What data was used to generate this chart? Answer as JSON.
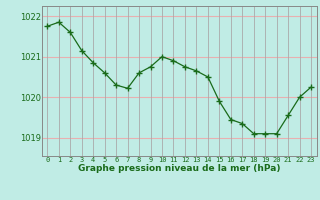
{
  "x": [
    0,
    1,
    2,
    3,
    4,
    5,
    6,
    7,
    8,
    9,
    10,
    11,
    12,
    13,
    14,
    15,
    16,
    17,
    18,
    19,
    20,
    21,
    22,
    23
  ],
  "y": [
    1021.75,
    1021.85,
    1021.6,
    1021.15,
    1020.85,
    1020.6,
    1020.3,
    1020.22,
    1020.6,
    1020.75,
    1021.0,
    1020.9,
    1020.75,
    1020.65,
    1020.5,
    1019.9,
    1019.45,
    1019.35,
    1019.1,
    1019.1,
    1019.1,
    1019.55,
    1020.0,
    1020.25
  ],
  "ylim": [
    1018.55,
    1022.25
  ],
  "yticks": [
    1019,
    1020,
    1021,
    1022
  ],
  "xticks": [
    0,
    1,
    2,
    3,
    4,
    5,
    6,
    7,
    8,
    9,
    10,
    11,
    12,
    13,
    14,
    15,
    16,
    17,
    18,
    19,
    20,
    21,
    22,
    23
  ],
  "line_color": "#1a6b1a",
  "marker_color": "#1a6b1a",
  "bg_color": "#c0ece5",
  "hgrid_color": "#e8b0b0",
  "vgrid_color": "#aaaaaa",
  "xlabel": "Graphe pression niveau de la mer (hPa)",
  "xlabel_color": "#1a6b1a",
  "tick_color": "#1a6b1a",
  "axis_line_color": "#888888"
}
